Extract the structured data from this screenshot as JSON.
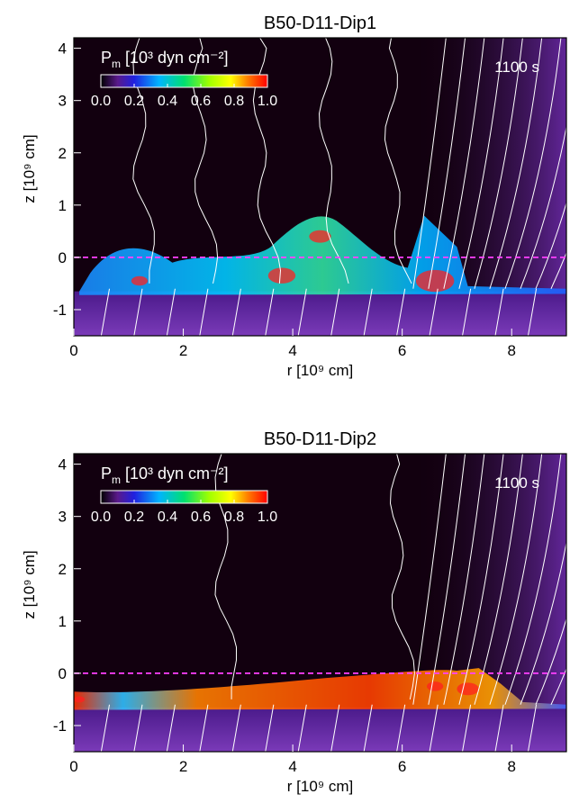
{
  "chart_data": [
    {
      "type": "heatmap",
      "title": "B50-D11-Dip1",
      "xlabel": "r [10⁹ cm]",
      "ylabel": "z [10⁹ cm]",
      "xlim": [
        0,
        9
      ],
      "ylim": [
        -1.5,
        4.2
      ],
      "x_ticks": [
        "0",
        "2",
        "4",
        "6",
        "8"
      ],
      "y_ticks": [
        "-1",
        "0",
        "1",
        "2",
        "3",
        "4"
      ],
      "time_label": "1100 s",
      "colorbar": {
        "label_main": "P",
        "label_sub": "m",
        "label_units": "[10³ dyn cm⁻²]",
        "ticks": [
          "0.0",
          "0.2",
          "0.4",
          "0.6",
          "0.8",
          "1.0"
        ],
        "range": [
          0.0,
          1.0
        ]
      },
      "reference_line_z": 0,
      "grid": false
    },
    {
      "type": "heatmap",
      "title": "B50-D11-Dip2",
      "xlabel": "r [10⁹ cm]",
      "ylabel": "z [10⁹ cm]",
      "xlim": [
        0,
        9
      ],
      "ylim": [
        -1.5,
        4.2
      ],
      "x_ticks": [
        "0",
        "2",
        "4",
        "6",
        "8"
      ],
      "y_ticks": [
        "-1",
        "0",
        "1",
        "2",
        "3",
        "4"
      ],
      "time_label": "1100 s",
      "colorbar": {
        "label_main": "P",
        "label_sub": "m",
        "label_units": "[10³ dyn cm⁻²]",
        "ticks": [
          "0.0",
          "0.2",
          "0.4",
          "0.6",
          "0.8",
          "1.0"
        ],
        "range": [
          0.0,
          1.0
        ]
      },
      "reference_line_z": 0,
      "grid": false
    }
  ],
  "colors": {
    "background": "#12000f",
    "field_lines": "#ffffff",
    "reference_line": "#ff40ff",
    "corona": "#2a0a4a"
  }
}
